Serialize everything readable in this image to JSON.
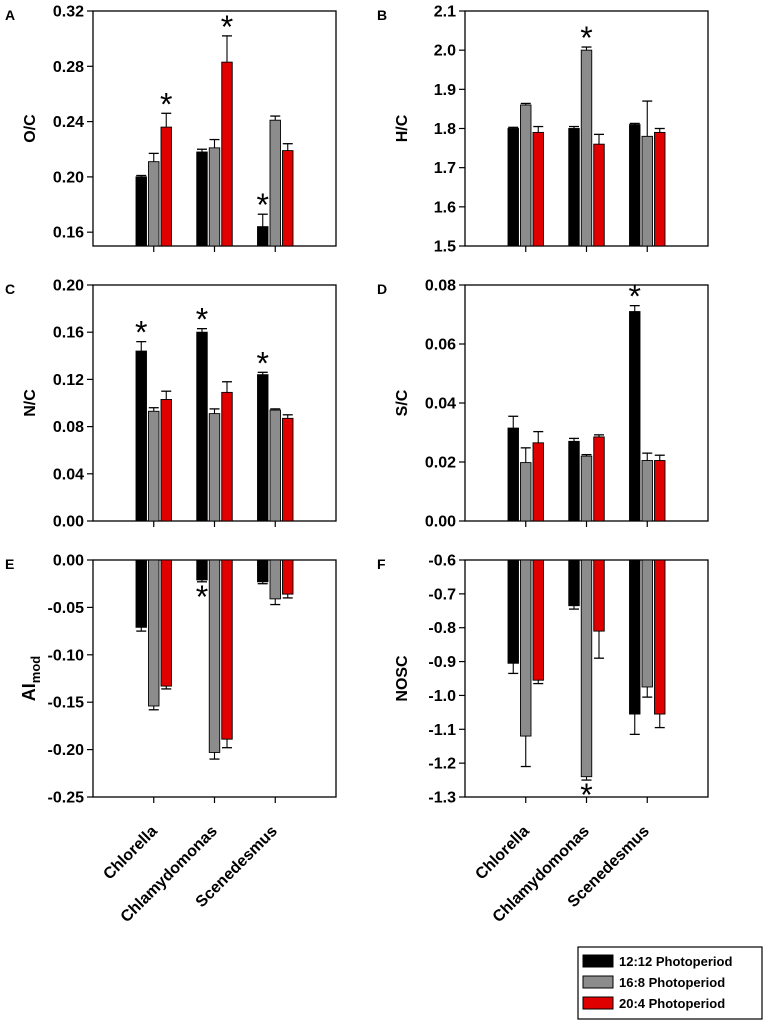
{
  "chart_data": [
    {
      "panel_label": "A",
      "type": "bar",
      "ylabel": "O/C",
      "ylim": [
        0.15,
        0.32
      ],
      "yticks": [
        0.16,
        0.2,
        0.24,
        0.28,
        0.32
      ],
      "ytick_labels": [
        "0.16",
        "0.20",
        "0.24",
        "0.28",
        "0.32"
      ],
      "categories": [
        "Chlorella",
        "Chlamydomonas",
        "Scenedesmus"
      ],
      "series": [
        {
          "name": "12:12 Photoperiod",
          "values": [
            0.2,
            0.218,
            0.164
          ],
          "errors": [
            0.001,
            0.002,
            0.009
          ]
        },
        {
          "name": "16:8 Photoperiod",
          "values": [
            0.211,
            0.221,
            0.241
          ],
          "errors": [
            0.006,
            0.006,
            0.003
          ]
        },
        {
          "name": "20:4 Photoperiod",
          "values": [
            0.236,
            0.283,
            0.219
          ],
          "errors": [
            0.01,
            0.019,
            0.005
          ]
        }
      ],
      "significance": [
        {
          "category": 0,
          "series": 2
        },
        {
          "category": 1,
          "series": 2
        },
        {
          "category": 2,
          "series": 0
        }
      ]
    },
    {
      "panel_label": "B",
      "type": "bar",
      "ylabel": "H/C",
      "ylim": [
        1.5,
        2.1
      ],
      "yticks": [
        1.5,
        1.6,
        1.7,
        1.8,
        1.9,
        2.0,
        2.1
      ],
      "ytick_labels": [
        "1.5",
        "1.6",
        "1.7",
        "1.8",
        "1.9",
        "2.0",
        "2.1"
      ],
      "categories": [
        "Chlorella",
        "Chlamydomonas",
        "Scenedesmus"
      ],
      "series": [
        {
          "name": "12:12 Photoperiod",
          "values": [
            1.8,
            1.8,
            1.81
          ],
          "errors": [
            0.003,
            0.005,
            0.003
          ]
        },
        {
          "name": "16:8 Photoperiod",
          "values": [
            1.86,
            2.0,
            1.78
          ],
          "errors": [
            0.004,
            0.008,
            0.09
          ]
        },
        {
          "name": "20:4 Photoperiod",
          "values": [
            1.79,
            1.76,
            1.79
          ],
          "errors": [
            0.015,
            0.025,
            0.01
          ]
        }
      ],
      "significance": [
        {
          "category": 1,
          "series": 1
        }
      ]
    },
    {
      "panel_label": "C",
      "type": "bar",
      "ylabel": "N/C",
      "ylim": [
        0,
        0.2
      ],
      "yticks": [
        0,
        0.04,
        0.08,
        0.12,
        0.16,
        0.2
      ],
      "ytick_labels": [
        "0.00",
        "0.04",
        "0.08",
        "0.12",
        "0.16",
        "0.20"
      ],
      "categories": [
        "Chlorella",
        "Chlamydomonas",
        "Scenedesmus"
      ],
      "series": [
        {
          "name": "12:12 Photoperiod",
          "values": [
            0.144,
            0.16,
            0.124
          ],
          "errors": [
            0.008,
            0.003,
            0.002
          ]
        },
        {
          "name": "16:8 Photoperiod",
          "values": [
            0.093,
            0.091,
            0.094
          ],
          "errors": [
            0.003,
            0.004,
            0.001
          ]
        },
        {
          "name": "20:4 Photoperiod",
          "values": [
            0.103,
            0.109,
            0.087
          ],
          "errors": [
            0.007,
            0.009,
            0.003
          ]
        }
      ],
      "significance": [
        {
          "category": 0,
          "series": 0
        },
        {
          "category": 1,
          "series": 0
        },
        {
          "category": 2,
          "series": 0
        }
      ]
    },
    {
      "panel_label": "D",
      "type": "bar",
      "ylabel": "S/C",
      "ylim": [
        0,
        0.08
      ],
      "yticks": [
        0,
        0.02,
        0.04,
        0.06,
        0.08
      ],
      "ytick_labels": [
        "0.00",
        "0.02",
        "0.04",
        "0.06",
        "0.08"
      ],
      "categories": [
        "Chlorella",
        "Chlamydomonas",
        "Scenedesmus"
      ],
      "series": [
        {
          "name": "12:12 Photoperiod",
          "values": [
            0.0315,
            0.027,
            0.071
          ],
          "errors": [
            0.004,
            0.001,
            0.002
          ]
        },
        {
          "name": "16:8 Photoperiod",
          "values": [
            0.0198,
            0.022,
            0.0205
          ],
          "errors": [
            0.005,
            0.0005,
            0.0025
          ]
        },
        {
          "name": "20:4 Photoperiod",
          "values": [
            0.0265,
            0.0285,
            0.0205
          ],
          "errors": [
            0.0038,
            0.0007,
            0.0018
          ]
        }
      ],
      "significance": [
        {
          "category": 2,
          "series": 0
        }
      ]
    },
    {
      "panel_label": "E",
      "type": "bar",
      "ylabel": "AI",
      "ylabel_subscript": "mod",
      "ylim": [
        -0.25,
        0
      ],
      "yticks": [
        0,
        -0.05,
        -0.1,
        -0.15,
        -0.2,
        -0.25
      ],
      "ytick_labels": [
        "0.00",
        "-0.05",
        "-0.10",
        "-0.15",
        "-0.20",
        "-0.25"
      ],
      "categories": [
        "Chlorella",
        "Chlamydomonas",
        "Scenedesmus"
      ],
      "series": [
        {
          "name": "12:12 Photoperiod",
          "values": [
            -0.071,
            -0.021,
            -0.023
          ],
          "errors": [
            0.004,
            0.002,
            0.002
          ]
        },
        {
          "name": "16:8 Photoperiod",
          "values": [
            -0.154,
            -0.203,
            -0.041
          ],
          "errors": [
            0.004,
            0.007,
            0.006
          ]
        },
        {
          "name": "20:4 Photoperiod",
          "values": [
            -0.133,
            -0.189,
            -0.036
          ],
          "errors": [
            0.003,
            0.009,
            0.004
          ]
        }
      ],
      "significance": [
        {
          "category": 1,
          "series": 0
        }
      ]
    },
    {
      "panel_label": "F",
      "type": "bar",
      "ylabel": "NOSC",
      "ylim": [
        -1.3,
        -0.6
      ],
      "baseline": -0.6,
      "yticks": [
        -0.6,
        -0.7,
        -0.8,
        -0.9,
        -1.0,
        -1.1,
        -1.2,
        -1.3
      ],
      "ytick_labels": [
        "-0.6",
        "-0.7",
        "-0.8",
        "-0.9",
        "-1.0",
        "-1.1",
        "-1.2",
        "-1.3"
      ],
      "categories": [
        "Chlorella",
        "Chlamydomonas",
        "Scenedesmus"
      ],
      "series": [
        {
          "name": "12:12 Photoperiod",
          "values": [
            -0.905,
            -0.735,
            -1.055
          ],
          "errors": [
            0.03,
            0.01,
            0.06
          ]
        },
        {
          "name": "16:8 Photoperiod",
          "values": [
            -1.12,
            -1.24,
            -0.975
          ],
          "errors": [
            0.09,
            0.01,
            0.03
          ]
        },
        {
          "name": "20:4 Photoperiod",
          "values": [
            -0.955,
            -0.81,
            -1.055
          ],
          "errors": [
            0.01,
            0.08,
            0.04
          ]
        }
      ],
      "significance": [
        {
          "category": 1,
          "series": 1
        }
      ]
    }
  ],
  "category_labels": [
    "Chlorella",
    "Chlamydomonas",
    "Scenedesmus"
  ],
  "legend": {
    "entries": [
      {
        "label": "12:12 Photoperiod",
        "color": "#000000"
      },
      {
        "label": "16:8 Photoperiod",
        "color": "#8c8c8c"
      },
      {
        "label": "20:4 Photoperiod",
        "color": "#e00000"
      }
    ]
  },
  "significance_marker": "*",
  "colors": {
    "series": [
      "#000000",
      "#8c8c8c",
      "#e00000"
    ]
  }
}
